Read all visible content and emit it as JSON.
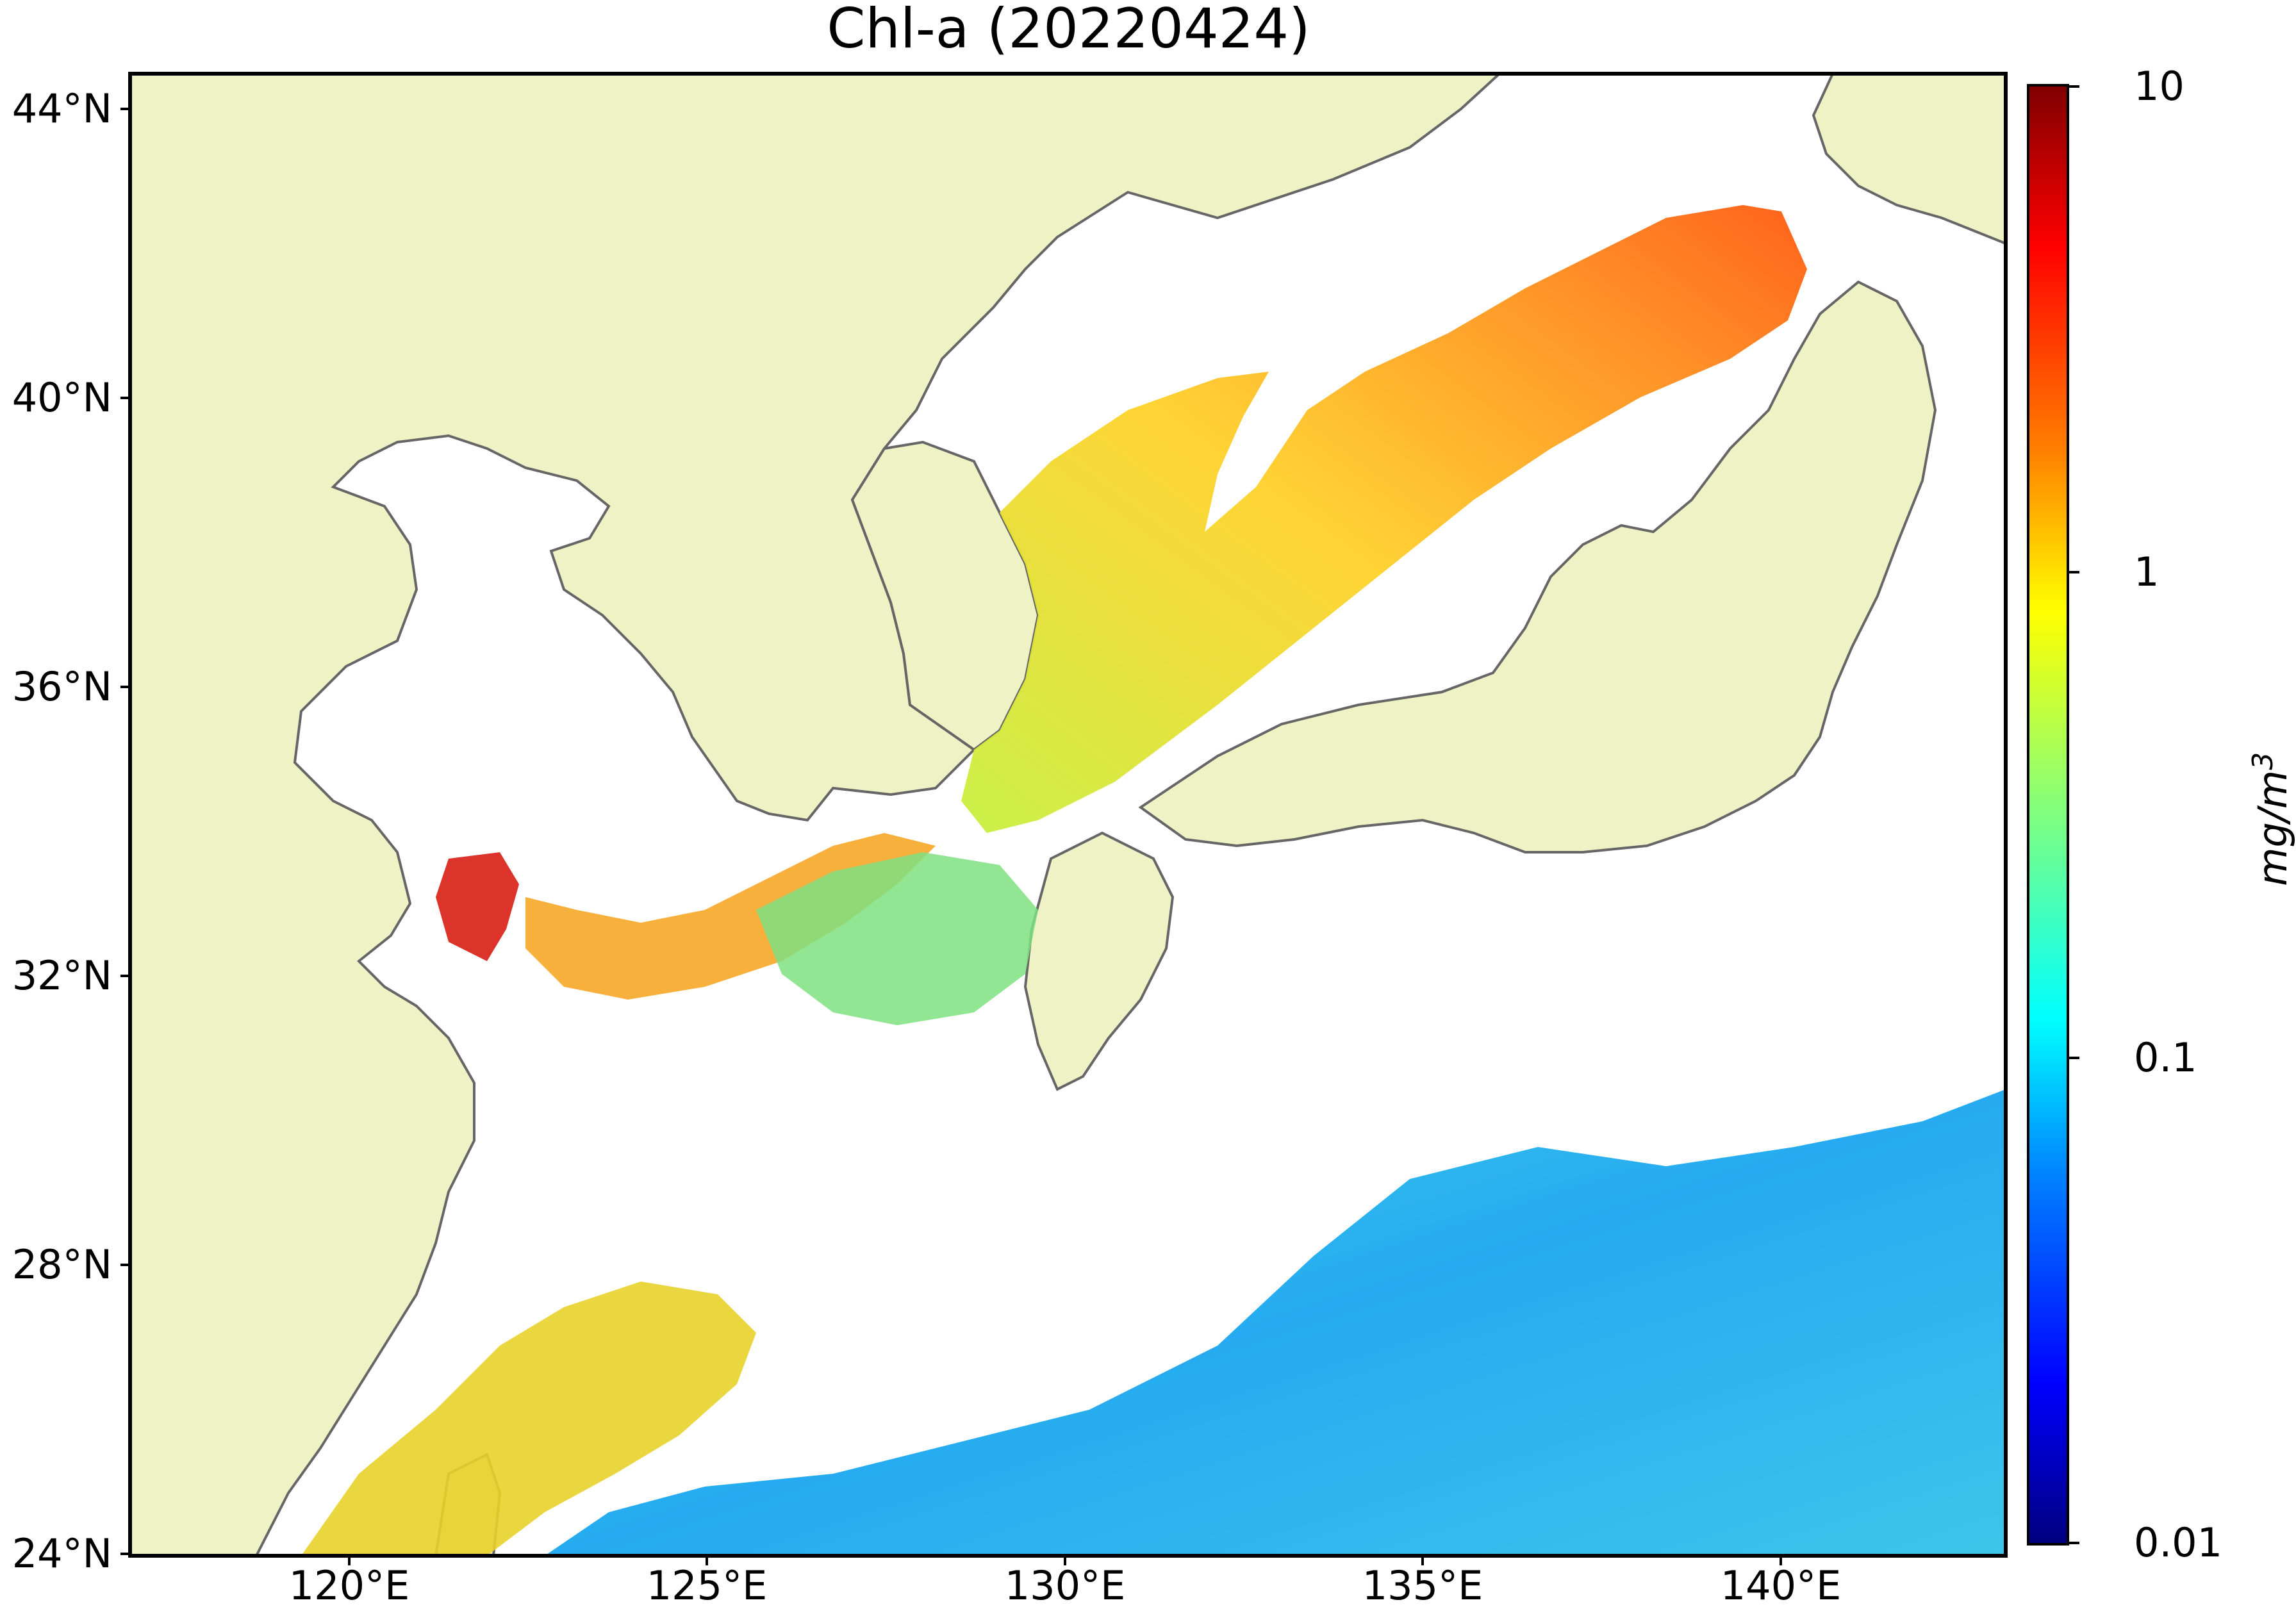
{
  "title": "Chl-a (20220424)",
  "map": {
    "lon_range_deg": [
      116.8,
      143.0
    ],
    "lat_range_deg": [
      24.0,
      44.5
    ],
    "lat_ticks": [
      "44°N",
      "40°N",
      "36°N",
      "32°N",
      "28°N",
      "24°N"
    ],
    "lon_ticks": [
      "120°E",
      "125°E",
      "130°E",
      "135°E",
      "140°E"
    ],
    "land_color": "#eef2c5",
    "coast_color": "#666666",
    "nodata_color": "#ffffff"
  },
  "colorbar": {
    "scale": "log",
    "range": [
      0.01,
      10
    ],
    "ticks": [
      "10",
      "1",
      "0.1",
      "0.01"
    ],
    "unit_label": "mg/m",
    "unit_exponent": "3",
    "colormap": "jet",
    "stops": [
      "#00007f",
      "#0000ff",
      "#007fff",
      "#00ffff",
      "#7fff7f",
      "#ffff00",
      "#ff7f00",
      "#ff0000",
      "#7f0000"
    ]
  }
}
